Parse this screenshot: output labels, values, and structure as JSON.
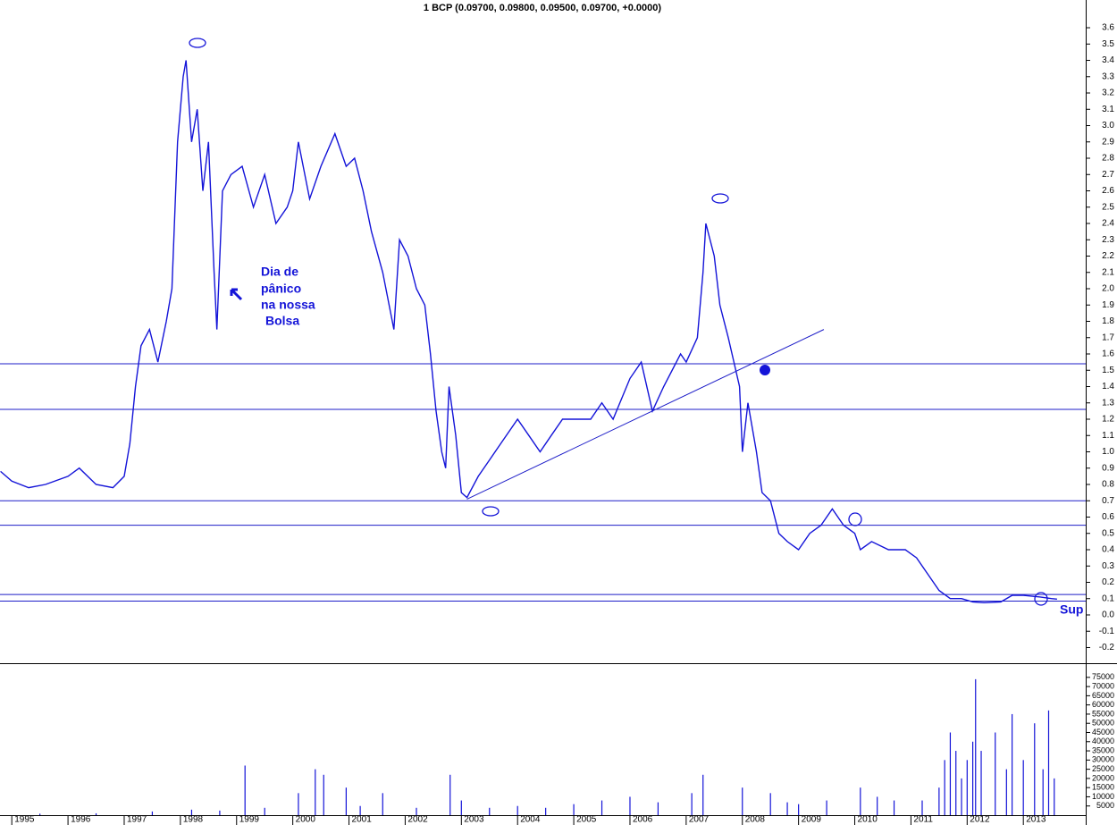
{
  "chart_data": [
    {
      "type": "line",
      "title": "1 BCP (0.09700, 0.09800, 0.09500, 0.09700, +0.0000)",
      "color": "#1414d8",
      "x": [
        1994.8,
        1995.0,
        1995.3,
        1995.6,
        1996.0,
        1996.2,
        1996.5,
        1996.8,
        1997.0,
        1997.1,
        1997.2,
        1997.3,
        1997.45,
        1997.6,
        1997.75,
        1997.85,
        1997.95,
        1998.05,
        1998.1,
        1998.2,
        1998.3,
        1998.4,
        1998.5,
        1998.6,
        1998.65,
        1998.75,
        1998.9,
        1999.1,
        1999.3,
        1999.5,
        1999.7,
        1999.9,
        2000.0,
        2000.1,
        2000.3,
        2000.5,
        2000.75,
        2000.95,
        2001.1,
        2001.25,
        2001.4,
        2001.6,
        2001.8,
        2001.9,
        2002.05,
        2002.2,
        2002.35,
        2002.45,
        2002.55,
        2002.65,
        2002.72,
        2002.78,
        2002.9,
        2003.0,
        2003.1,
        2003.3,
        2003.5,
        2003.7,
        2004.0,
        2004.2,
        2004.4,
        2004.6,
        2004.8,
        2005.0,
        2005.3,
        2005.5,
        2005.7,
        2006.0,
        2006.2,
        2006.4,
        2006.6,
        2006.9,
        2007.0,
        2007.2,
        2007.3,
        2007.35,
        2007.5,
        2007.6,
        2007.75,
        2007.85,
        2007.95,
        2008.0,
        2008.1,
        2008.25,
        2008.35,
        2008.5,
        2008.65,
        2008.8,
        2009.0,
        2009.2,
        2009.4,
        2009.6,
        2009.8,
        2010.0,
        2010.1,
        2010.3,
        2010.6,
        2010.9,
        2011.1,
        2011.3,
        2011.5,
        2011.7,
        2011.9,
        2012.1,
        2012.3,
        2012.6,
        2012.8,
        2013.0,
        2013.3,
        2013.5,
        2013.6
      ],
      "values": [
        0.88,
        0.82,
        0.78,
        0.8,
        0.85,
        0.9,
        0.8,
        0.78,
        0.85,
        1.05,
        1.4,
        1.65,
        1.75,
        1.55,
        1.8,
        2.0,
        2.9,
        3.3,
        3.4,
        2.9,
        3.1,
        2.6,
        2.9,
        2.1,
        1.75,
        2.6,
        2.7,
        2.75,
        2.5,
        2.7,
        2.4,
        2.5,
        2.6,
        2.9,
        2.55,
        2.75,
        2.95,
        2.75,
        2.8,
        2.6,
        2.35,
        2.1,
        1.75,
        2.3,
        2.2,
        2.0,
        1.9,
        1.6,
        1.25,
        1.0,
        0.9,
        1.4,
        1.1,
        0.75,
        0.72,
        0.85,
        0.95,
        1.05,
        1.2,
        1.1,
        1.0,
        1.1,
        1.2,
        1.2,
        1.2,
        1.3,
        1.2,
        1.45,
        1.55,
        1.25,
        1.4,
        1.6,
        1.55,
        1.7,
        2.1,
        2.4,
        2.2,
        1.9,
        1.7,
        1.55,
        1.4,
        1.0,
        1.3,
        1.0,
        0.75,
        0.7,
        0.5,
        0.45,
        0.4,
        0.5,
        0.55,
        0.65,
        0.55,
        0.5,
        0.4,
        0.45,
        0.4,
        0.4,
        0.35,
        0.25,
        0.15,
        0.1,
        0.1,
        0.08,
        0.075,
        0.08,
        0.12,
        0.12,
        0.11,
        0.1,
        0.097
      ],
      "hlines": [
        1.54,
        1.26,
        0.7,
        0.55,
        0.125,
        0.085
      ],
      "trendline": {
        "x": [
          2003.1,
          2009.45
        ],
        "y": [
          0.71,
          1.75
        ]
      },
      "annotations": [
        "Dia de",
        "pânico",
        "na nossa",
        "Bolsa",
        "Sup"
      ],
      "xlim": [
        1994.79,
        2014.11
      ],
      "ylim": [
        -0.296,
        3.77
      ],
      "yticks": [
        -0.2,
        -0.1,
        {
          "value": 0,
          "label": "0.0"
        },
        0.1,
        0.2,
        0.3,
        0.4,
        0.5,
        0.6,
        0.7,
        0.8,
        0.9,
        {
          "value": 1,
          "label": "1.0"
        },
        1.1,
        1.2,
        1.3,
        1.4,
        1.5,
        1.6,
        1.7,
        1.8,
        1.9,
        {
          "value": 2,
          "label": "2.0"
        },
        2.1,
        2.2,
        2.3,
        2.4,
        2.5,
        2.6,
        2.7,
        2.8,
        2.9,
        {
          "value": 3,
          "label": "3.0"
        },
        3.1,
        3.2,
        3.3,
        3.4,
        3.5,
        3.6
      ]
    },
    {
      "type": "bar",
      "color": "#1414d8",
      "x": [
        1995.5,
        1996.5,
        1997.5,
        1998.2,
        1998.7,
        1999.15,
        1999.5,
        2000.1,
        2000.4,
        2000.55,
        2000.95,
        2001.2,
        2001.6,
        2002.2,
        2002.8,
        2003.0,
        2003.5,
        2004.0,
        2004.5,
        2005.0,
        2005.5,
        2006.0,
        2006.5,
        2007.1,
        2007.3,
        2008.0,
        2008.5,
        2008.8,
        2009.0,
        2009.5,
        2010.1,
        2010.4,
        2010.7,
        2011.2,
        2011.5,
        2011.6,
        2011.7,
        2011.8,
        2011.9,
        2012.0,
        2012.1,
        2012.15,
        2012.25,
        2012.5,
        2012.7,
        2012.8,
        2013.0,
        2013.2,
        2013.35,
        2013.45,
        2013.55
      ],
      "values": [
        800,
        1000,
        2000,
        3000,
        2500,
        27000,
        4000,
        12000,
        25000,
        22000,
        15000,
        5000,
        12000,
        4000,
        22000,
        8000,
        4000,
        5000,
        4000,
        6000,
        8000,
        10000,
        7000,
        12000,
        22000,
        15000,
        12000,
        7000,
        6000,
        8000,
        15000,
        10000,
        8000,
        8000,
        15000,
        30000,
        45000,
        35000,
        20000,
        30000,
        40000,
        74000,
        35000,
        45000,
        25000,
        55000,
        30000,
        50000,
        25000,
        57000,
        20000
      ],
      "xlim": [
        1994.79,
        2014.11
      ],
      "ylim": [
        0,
        82700
      ],
      "yticks": [
        5000,
        10000,
        15000,
        20000,
        25000,
        30000,
        35000,
        40000,
        45000,
        50000,
        55000,
        60000,
        65000,
        70000,
        75000
      ],
      "xticks": [
        1995,
        1996,
        1997,
        1998,
        1999,
        2000,
        2001,
        2002,
        2003,
        2004,
        2005,
        2006,
        2007,
        2008,
        2009,
        2010,
        2011,
        2012,
        2013
      ]
    }
  ]
}
